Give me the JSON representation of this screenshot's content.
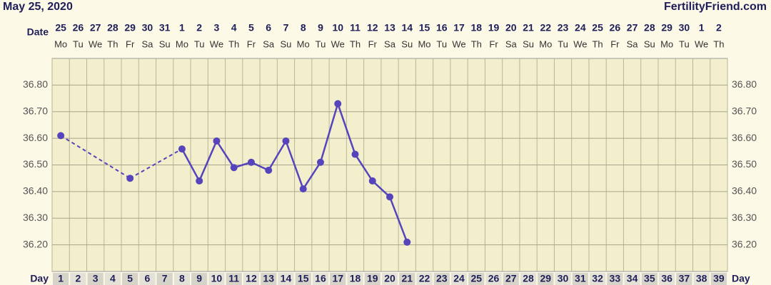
{
  "chart_data": {
    "type": "line",
    "header_left": "May 25, 2020",
    "header_right": "FertilityFriend.com",
    "date_label": "Date",
    "day_label": "Day",
    "dates": [
      "25",
      "26",
      "27",
      "28",
      "29",
      "30",
      "31",
      "1",
      "2",
      "3",
      "4",
      "5",
      "6",
      "7",
      "8",
      "9",
      "10",
      "11",
      "12",
      "13",
      "14",
      "15",
      "16",
      "17",
      "18",
      "19",
      "20",
      "21",
      "22",
      "23",
      "24",
      "25",
      "26",
      "27",
      "28",
      "29",
      "30",
      "1",
      "2"
    ],
    "weekdays": [
      "Mo",
      "Tu",
      "We",
      "Th",
      "Fr",
      "Sa",
      "Su",
      "Mo",
      "Tu",
      "We",
      "Th",
      "Fr",
      "Sa",
      "Su",
      "Mo",
      "Tu",
      "We",
      "Th",
      "Fr",
      "Sa",
      "Su",
      "Mo",
      "Tu",
      "We",
      "Th",
      "Fr",
      "Sa",
      "Su",
      "Mo",
      "Tu",
      "We",
      "Th",
      "Fr",
      "Sa",
      "Su",
      "Mo",
      "Tu",
      "We",
      "Th"
    ],
    "x": [
      1,
      2,
      3,
      4,
      5,
      6,
      7,
      8,
      9,
      10,
      11,
      12,
      13,
      14,
      15,
      16,
      17,
      18,
      19,
      20,
      21,
      22,
      23,
      24,
      25,
      26,
      27,
      28,
      29,
      30,
      31,
      32,
      33,
      34,
      35,
      36,
      37,
      38,
      39
    ],
    "series": [
      {
        "color": "#5544bb",
        "values": [
          36.61,
          null,
          null,
          null,
          36.45,
          null,
          null,
          36.56,
          36.44,
          36.59,
          36.49,
          36.51,
          36.48,
          36.59,
          36.41,
          36.51,
          36.73,
          36.54,
          36.44,
          36.38,
          36.21,
          null,
          null,
          null,
          null,
          null,
          null,
          null,
          null,
          null,
          null,
          null,
          null,
          null,
          null,
          null,
          null,
          null,
          null
        ]
      }
    ],
    "xlim": [
      0.5,
      39.5
    ],
    "ylim": [
      36.1,
      36.9
    ],
    "yticks": [
      {
        "value": 36.2,
        "label": "36.20"
      },
      {
        "value": 36.3,
        "label": "36.30"
      },
      {
        "value": 36.4,
        "label": "36.40"
      },
      {
        "value": 36.5,
        "label": "36.50"
      },
      {
        "value": 36.6,
        "label": "36.60"
      },
      {
        "value": 36.7,
        "label": "36.70"
      },
      {
        "value": 36.8,
        "label": "36.80"
      }
    ],
    "grid": true
  }
}
